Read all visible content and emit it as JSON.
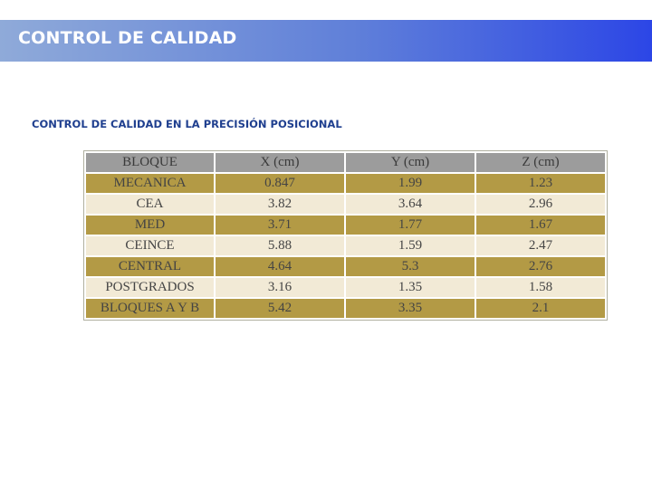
{
  "header": {
    "title": "CONTROL DE CALIDAD"
  },
  "section": {
    "subtitle": "CONTROL DE CALIDAD EN LA PRECISIÓN POSICIONAL"
  },
  "table": {
    "columns": [
      "BLOQUE",
      "X (cm)",
      "Y (cm)",
      "Z (cm)"
    ],
    "rows": [
      [
        "MECANICA",
        "0.847",
        "1.99",
        "1.23"
      ],
      [
        "CEA",
        "3.82",
        "3.64",
        "2.96"
      ],
      [
        "MED",
        "3.71",
        "1.77",
        "1.67"
      ],
      [
        "CEINCE",
        "5.88",
        "1.59",
        "2.47"
      ],
      [
        "CENTRAL",
        "4.64",
        "5.3",
        "2.76"
      ],
      [
        "POSTGRADOS",
        "3.16",
        "1.35",
        "1.58"
      ],
      [
        "BLOQUES A Y B",
        "5.42",
        "3.35",
        "2.1"
      ]
    ]
  },
  "colors": {
    "banner_start": "#8faad9",
    "banner_end": "#2c46e6",
    "header_row": "#9c9c9c",
    "row_dark": "#b39a45",
    "row_light": "#f2ead6",
    "subtitle": "#1f3f8f"
  }
}
